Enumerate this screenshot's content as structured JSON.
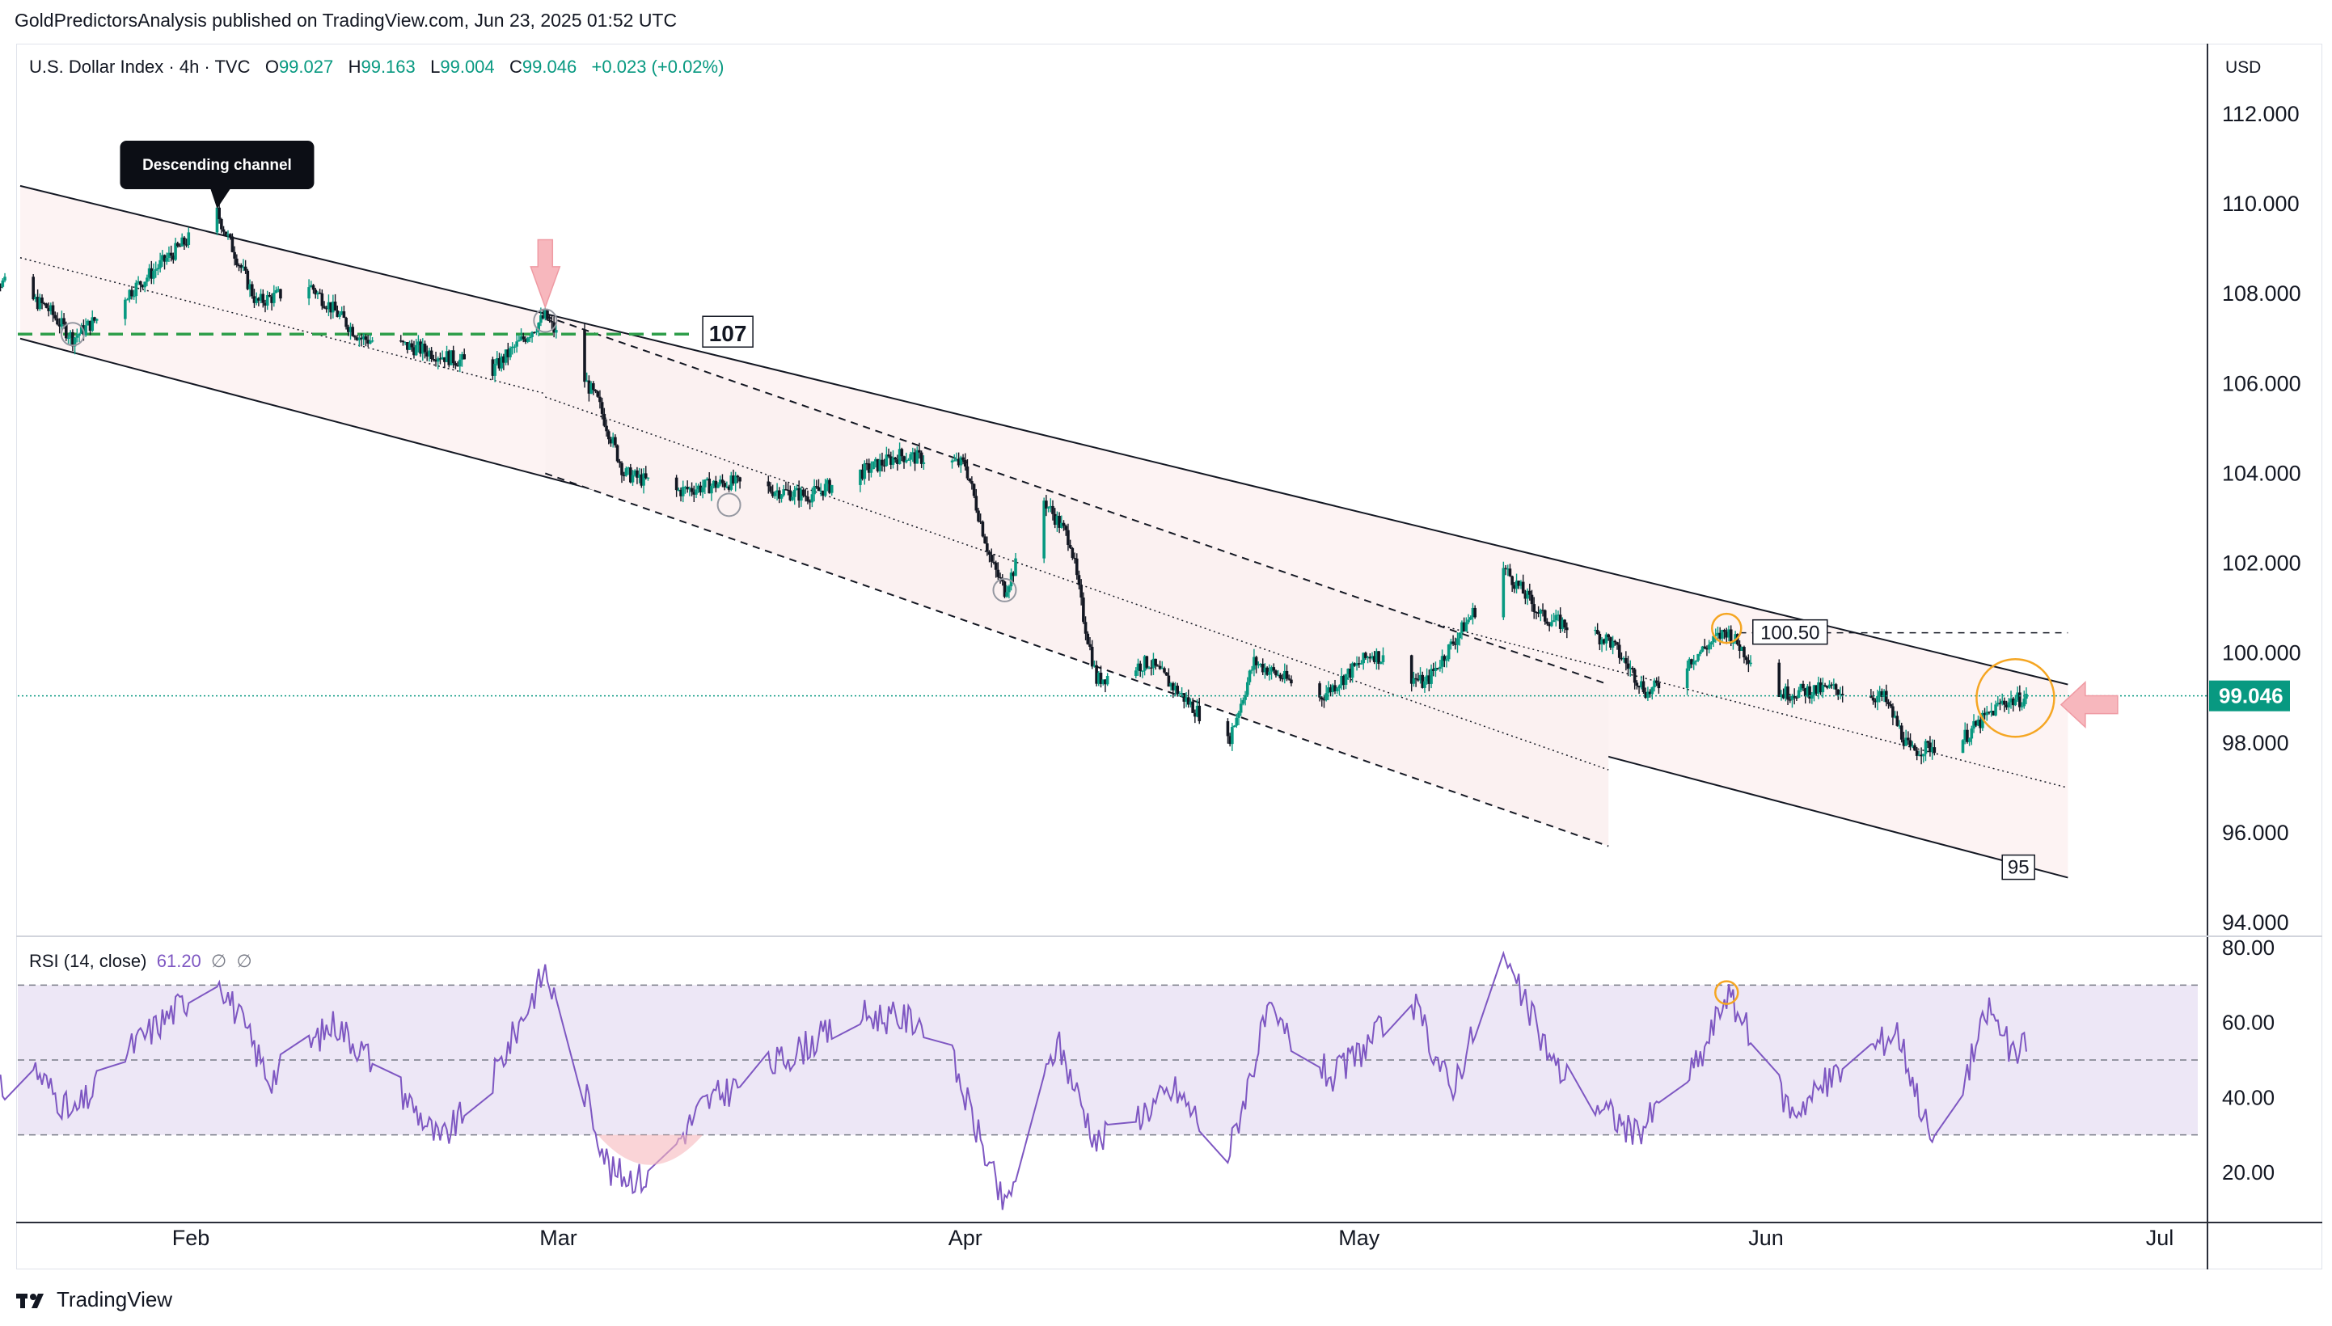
{
  "header": {
    "published_line": "GoldPredictorsAnalysis published on TradingView.com, Jun 23, 2025 01:52 UTC"
  },
  "legend": {
    "symbol": "U.S. Dollar Index · 4h · TVC",
    "open_label": "O",
    "open": "99.027",
    "high_label": "H",
    "high": "99.163",
    "low_label": "L",
    "low": "99.004",
    "close_label": "C",
    "close": "99.046",
    "change": "+0.023 (+0.02%)"
  },
  "currency": "USD",
  "rsi_legend": {
    "label": "RSI (14, close)",
    "value": "61.20",
    "extra1": "∅",
    "extra2": "∅"
  },
  "footer": {
    "brand": "TradingView",
    "logo": "tradingview-logo"
  },
  "colors": {
    "up": "#089981",
    "down": "#131722",
    "rsi_line": "#7e57c2",
    "rsi_band": "#ede7f6",
    "channel_fill": "#fdf3f3",
    "support_dash": "#2e9e4a",
    "last_price_bg": "#089981",
    "orange_circle": "#f5a623",
    "pink_marker": "#f7b7bd"
  },
  "chart_data": [
    {
      "type": "candlestick",
      "title": "U.S. Dollar Index · 4h · TVC",
      "x_tick_labels": [
        "Feb",
        "Mar",
        "Apr",
        "May",
        "Jun",
        "Jul"
      ],
      "y_tick_labels": [
        "112.000",
        "110.000",
        "108.000",
        "106.000",
        "104.000",
        "102.000",
        "100.000",
        "98.000",
        "96.000",
        "94.000"
      ],
      "ylim": [
        94,
        112
      ],
      "last_price": "99.046",
      "price_path": [
        {
          "date": "2025-01-16",
          "close": 108.5
        },
        {
          "date": "2025-01-21",
          "close": 107.7
        },
        {
          "date": "2025-01-23",
          "close": 107.0
        },
        {
          "date": "2025-01-28",
          "close": 108.2
        },
        {
          "date": "2025-02-03",
          "close": 109.8
        },
        {
          "date": "2025-02-06",
          "close": 107.8
        },
        {
          "date": "2025-02-10",
          "close": 108.2
        },
        {
          "date": "2025-02-14",
          "close": 107.0
        },
        {
          "date": "2025-02-18",
          "close": 106.8
        },
        {
          "date": "2025-02-24",
          "close": 106.3
        },
        {
          "date": "2025-02-28",
          "close": 107.5
        },
        {
          "date": "2025-03-04",
          "close": 105.6
        },
        {
          "date": "2025-03-06",
          "close": 104.0
        },
        {
          "date": "2025-03-10",
          "close": 103.6
        },
        {
          "date": "2025-03-14",
          "close": 103.8
        },
        {
          "date": "2025-03-20",
          "close": 103.5
        },
        {
          "date": "2025-03-27",
          "close": 104.4
        },
        {
          "date": "2025-04-01",
          "close": 104.2
        },
        {
          "date": "2025-04-03",
          "close": 102.0
        },
        {
          "date": "2025-04-04",
          "close": 101.4
        },
        {
          "date": "2025-04-07",
          "close": 103.4
        },
        {
          "date": "2025-04-09",
          "close": 102.5
        },
        {
          "date": "2025-04-10",
          "close": 100.8
        },
        {
          "date": "2025-04-11",
          "close": 99.4
        },
        {
          "date": "2025-04-15",
          "close": 99.8
        },
        {
          "date": "2025-04-21",
          "close": 98.0
        },
        {
          "date": "2025-04-23",
          "close": 99.8
        },
        {
          "date": "2025-04-28",
          "close": 99.0
        },
        {
          "date": "2025-05-02",
          "close": 100.0
        },
        {
          "date": "2025-05-06",
          "close": 99.3
        },
        {
          "date": "2025-05-09",
          "close": 100.6
        },
        {
          "date": "2025-05-12",
          "close": 101.9
        },
        {
          "date": "2025-05-15",
          "close": 100.8
        },
        {
          "date": "2025-05-20",
          "close": 100.3
        },
        {
          "date": "2025-05-23",
          "close": 99.1
        },
        {
          "date": "2025-05-29",
          "close": 100.5
        },
        {
          "date": "2025-06-02",
          "close": 99.1
        },
        {
          "date": "2025-06-06",
          "close": 99.2
        },
        {
          "date": "2025-06-10",
          "close": 99.0
        },
        {
          "date": "2025-06-12",
          "close": 97.8
        },
        {
          "date": "2025-06-16",
          "close": 98.1
        },
        {
          "date": "2025-06-19",
          "close": 98.9
        },
        {
          "date": "2025-06-22",
          "close": 99.046
        }
      ],
      "annotations": [
        {
          "type": "callout",
          "text": "Descending channel"
        },
        {
          "type": "level_label",
          "text": "107",
          "price": 107.1
        },
        {
          "type": "level_label",
          "text": "100.50",
          "price": 100.5
        },
        {
          "type": "level_label",
          "text": "95",
          "price": 95.1
        }
      ]
    },
    {
      "type": "line",
      "title": "RSI (14, close)",
      "y_tick_labels": [
        "80.00",
        "60.00",
        "40.00",
        "20.00"
      ],
      "ylim": [
        10,
        80
      ],
      "bands": [
        70,
        50,
        30
      ],
      "last_value": 61.2,
      "series": [
        {
          "values": [
            {
              "date": "2025-01-16",
              "value": 38
            },
            {
              "date": "2025-01-20",
              "value": 48
            },
            {
              "date": "2025-01-23",
              "value": 35
            },
            {
              "date": "2025-01-27",
              "value": 52
            },
            {
              "date": "2025-02-03",
              "value": 73
            },
            {
              "date": "2025-02-07",
              "value": 45
            },
            {
              "date": "2025-02-12",
              "value": 60
            },
            {
              "date": "2025-02-17",
              "value": 42
            },
            {
              "date": "2025-02-20",
              "value": 28
            },
            {
              "date": "2025-02-24",
              "value": 45
            },
            {
              "date": "2025-02-28",
              "value": 74
            },
            {
              "date": "2025-03-05",
              "value": 20
            },
            {
              "date": "2025-03-08",
              "value": 18
            },
            {
              "date": "2025-03-12",
              "value": 38
            },
            {
              "date": "2025-03-18",
              "value": 50
            },
            {
              "date": "2025-03-24",
              "value": 62
            },
            {
              "date": "2025-03-30",
              "value": 60
            },
            {
              "date": "2025-04-04",
              "value": 10
            },
            {
              "date": "2025-04-08",
              "value": 55
            },
            {
              "date": "2025-04-11",
              "value": 28
            },
            {
              "date": "2025-04-17",
              "value": 42
            },
            {
              "date": "2025-04-21",
              "value": 24
            },
            {
              "date": "2025-04-24",
              "value": 62
            },
            {
              "date": "2025-04-29",
              "value": 45
            },
            {
              "date": "2025-05-05",
              "value": 66
            },
            {
              "date": "2025-05-08",
              "value": 42
            },
            {
              "date": "2025-05-12",
              "value": 77
            },
            {
              "date": "2025-05-16",
              "value": 48
            },
            {
              "date": "2025-05-22",
              "value": 30
            },
            {
              "date": "2025-05-27",
              "value": 50
            },
            {
              "date": "2025-05-29",
              "value": 68
            },
            {
              "date": "2025-06-03",
              "value": 36
            },
            {
              "date": "2025-06-07",
              "value": 48
            },
            {
              "date": "2025-06-11",
              "value": 58
            },
            {
              "date": "2025-06-14",
              "value": 24
            },
            {
              "date": "2025-06-18",
              "value": 64
            },
            {
              "date": "2025-06-20",
              "value": 50
            },
            {
              "date": "2025-06-22",
              "value": 61.2
            }
          ]
        }
      ]
    }
  ]
}
